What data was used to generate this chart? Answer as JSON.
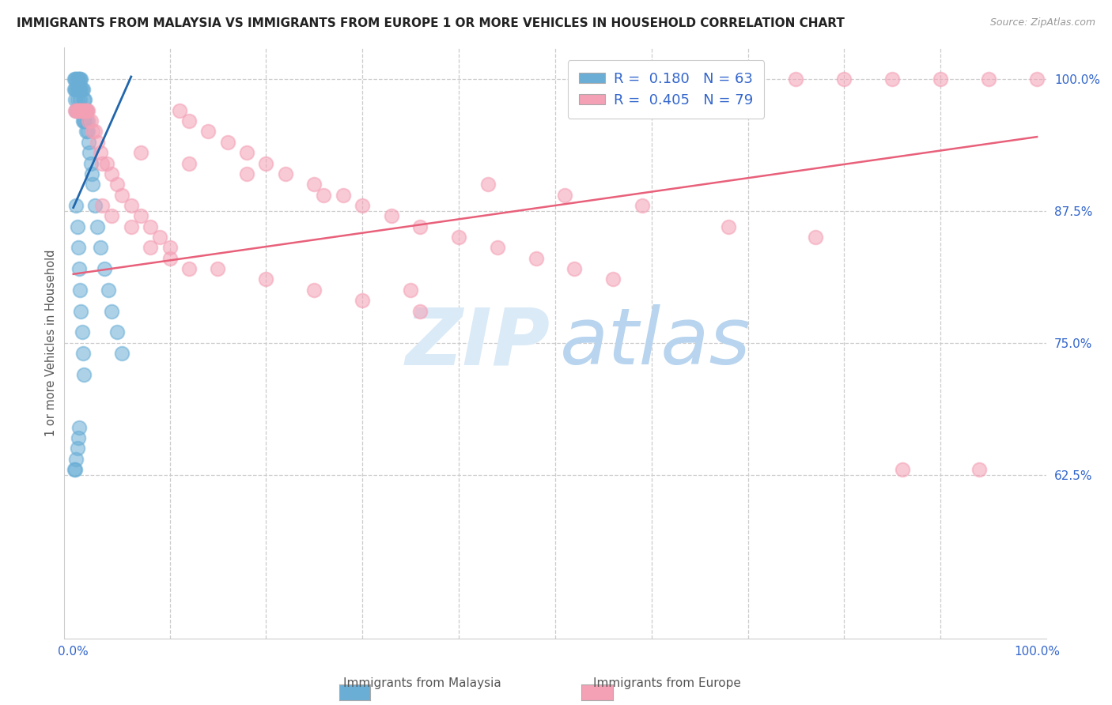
{
  "title": "IMMIGRANTS FROM MALAYSIA VS IMMIGRANTS FROM EUROPE 1 OR MORE VEHICLES IN HOUSEHOLD CORRELATION CHART",
  "source": "Source: ZipAtlas.com",
  "ylabel": "1 or more Vehicles in Household",
  "legend_blue_R": "0.180",
  "legend_blue_N": "63",
  "legend_pink_R": "0.405",
  "legend_pink_N": "79",
  "blue_color": "#6aaed6",
  "pink_color": "#f4a0b5",
  "blue_line_color": "#2166ac",
  "pink_line_color": "#e8607a",
  "background_color": "#ffffff",
  "xlim": [
    -0.01,
    1.01
  ],
  "ylim": [
    0.47,
    1.03
  ],
  "blue_x": [
    0.001,
    0.001,
    0.002,
    0.002,
    0.002,
    0.003,
    0.003,
    0.003,
    0.004,
    0.004,
    0.004,
    0.005,
    0.005,
    0.005,
    0.006,
    0.006,
    0.007,
    0.007,
    0.007,
    0.008,
    0.008,
    0.008,
    0.009,
    0.009,
    0.01,
    0.01,
    0.01,
    0.011,
    0.011,
    0.012,
    0.012,
    0.013,
    0.013,
    0.014,
    0.015,
    0.016,
    0.017,
    0.018,
    0.019,
    0.02,
    0.022,
    0.025,
    0.028,
    0.032,
    0.036,
    0.04,
    0.045,
    0.05,
    0.003,
    0.004,
    0.005,
    0.006,
    0.007,
    0.008,
    0.009,
    0.01,
    0.011,
    0.001,
    0.002,
    0.003,
    0.004,
    0.005,
    0.006
  ],
  "blue_y": [
    1.0,
    0.99,
    1.0,
    0.99,
    0.98,
    1.0,
    0.99,
    0.97,
    1.0,
    0.99,
    0.98,
    1.0,
    0.99,
    0.97,
    1.0,
    0.99,
    1.0,
    0.99,
    0.98,
    1.0,
    0.99,
    0.97,
    0.99,
    0.97,
    0.99,
    0.97,
    0.96,
    0.98,
    0.96,
    0.98,
    0.96,
    0.97,
    0.95,
    0.96,
    0.95,
    0.94,
    0.93,
    0.92,
    0.91,
    0.9,
    0.88,
    0.86,
    0.84,
    0.82,
    0.8,
    0.78,
    0.76,
    0.74,
    0.88,
    0.86,
    0.84,
    0.82,
    0.8,
    0.78,
    0.76,
    0.74,
    0.72,
    0.63,
    0.63,
    0.64,
    0.65,
    0.66,
    0.67
  ],
  "pink_x": [
    0.002,
    0.003,
    0.004,
    0.005,
    0.006,
    0.007,
    0.008,
    0.009,
    0.01,
    0.011,
    0.012,
    0.013,
    0.014,
    0.015,
    0.016,
    0.018,
    0.02,
    0.022,
    0.025,
    0.028,
    0.03,
    0.035,
    0.04,
    0.045,
    0.05,
    0.06,
    0.07,
    0.08,
    0.09,
    0.1,
    0.11,
    0.12,
    0.14,
    0.16,
    0.18,
    0.2,
    0.22,
    0.25,
    0.28,
    0.3,
    0.33,
    0.36,
    0.4,
    0.44,
    0.48,
    0.52,
    0.56,
    0.6,
    0.65,
    0.7,
    0.75,
    0.8,
    0.85,
    0.9,
    0.95,
    1.0,
    0.03,
    0.04,
    0.06,
    0.08,
    0.1,
    0.12,
    0.15,
    0.2,
    0.25,
    0.3,
    0.36,
    0.43,
    0.51,
    0.59,
    0.68,
    0.77,
    0.86,
    0.94,
    0.07,
    0.12,
    0.18,
    0.26,
    0.35
  ],
  "pink_y": [
    0.97,
    0.97,
    0.97,
    0.97,
    0.97,
    0.97,
    0.97,
    0.97,
    0.97,
    0.97,
    0.97,
    0.97,
    0.97,
    0.97,
    0.96,
    0.96,
    0.95,
    0.95,
    0.94,
    0.93,
    0.92,
    0.92,
    0.91,
    0.9,
    0.89,
    0.88,
    0.87,
    0.86,
    0.85,
    0.84,
    0.97,
    0.96,
    0.95,
    0.94,
    0.93,
    0.92,
    0.91,
    0.9,
    0.89,
    0.88,
    0.87,
    0.86,
    0.85,
    0.84,
    0.83,
    0.82,
    0.81,
    1.0,
    1.0,
    1.0,
    1.0,
    1.0,
    1.0,
    1.0,
    1.0,
    1.0,
    0.88,
    0.87,
    0.86,
    0.84,
    0.83,
    0.82,
    0.82,
    0.81,
    0.8,
    0.79,
    0.78,
    0.9,
    0.89,
    0.88,
    0.86,
    0.85,
    0.63,
    0.63,
    0.93,
    0.92,
    0.91,
    0.89,
    0.8
  ],
  "blue_line_x": [
    0.0,
    0.06
  ],
  "blue_line_y": [
    0.878,
    1.002
  ],
  "pink_line_x": [
    0.0,
    1.0
  ],
  "pink_line_y": [
    0.815,
    0.945
  ]
}
